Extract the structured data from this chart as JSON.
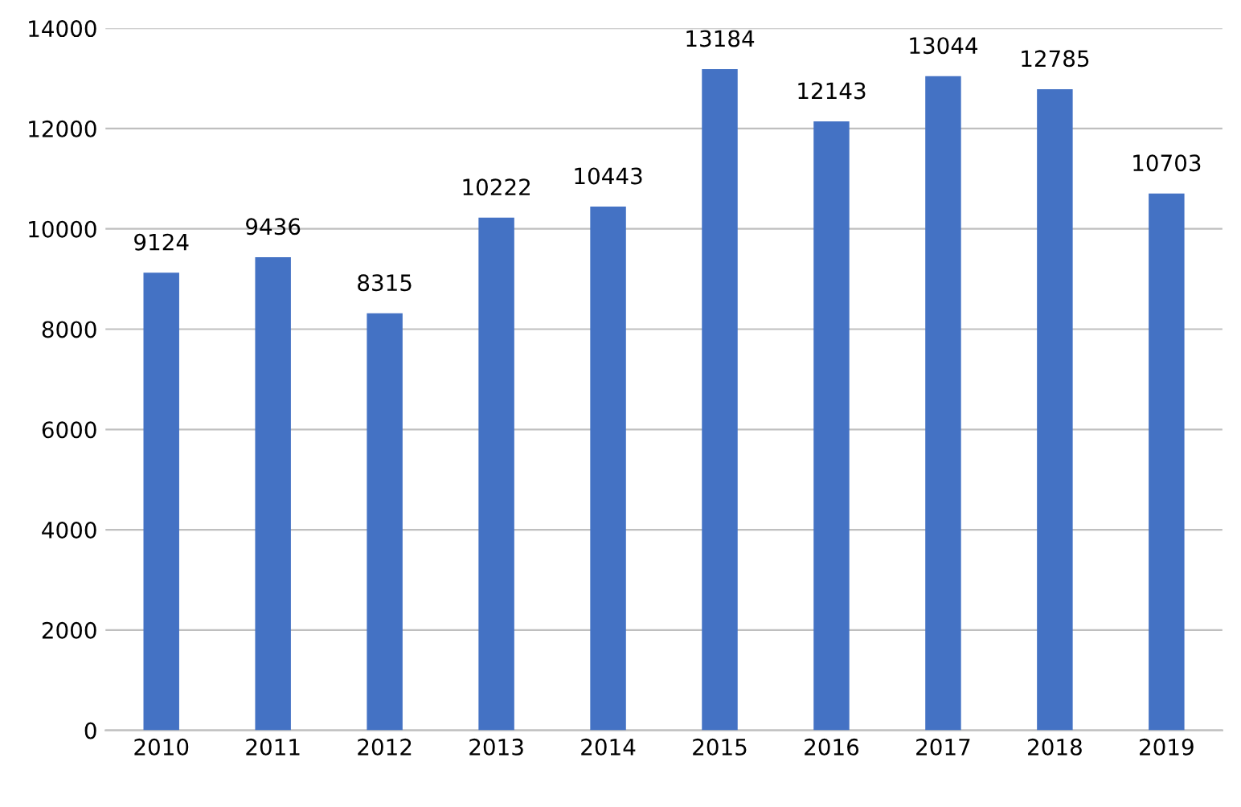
{
  "chart_data": {
    "type": "bar",
    "categories": [
      "2010",
      "2011",
      "2012",
      "2013",
      "2014",
      "2015",
      "2016",
      "2017",
      "2018",
      "2019"
    ],
    "values": [
      9124,
      9436,
      8315,
      10222,
      10443,
      13184,
      12143,
      13044,
      12785,
      10703
    ],
    "color": "#4472c4",
    "ylim": [
      0,
      14000
    ],
    "yticks": [
      0,
      2000,
      4000,
      6000,
      8000,
      10000,
      12000,
      14000
    ],
    "grid": "y",
    "data_labels": true
  }
}
